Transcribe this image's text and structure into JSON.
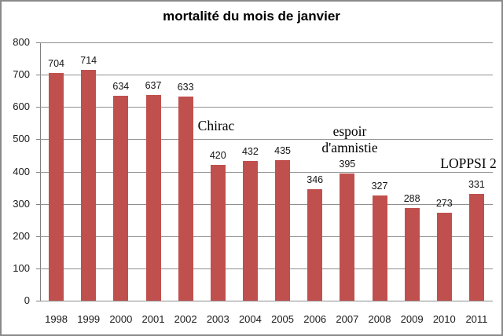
{
  "window": {
    "background_color": "#ffffff",
    "border_color": "#8a8a8a"
  },
  "chart_data": {
    "type": "bar",
    "title": "mortalité du mois de janvier",
    "categories": [
      "1998",
      "1999",
      "2000",
      "2001",
      "2002",
      "2003",
      "2004",
      "2005",
      "2006",
      "2007",
      "2008",
      "2009",
      "2010",
      "2011"
    ],
    "values": [
      704,
      714,
      634,
      637,
      633,
      420,
      432,
      435,
      346,
      395,
      327,
      288,
      273,
      331
    ],
    "xlabel": "",
    "ylabel": "",
    "ylim": [
      0,
      800
    ],
    "yticks": [
      0,
      100,
      200,
      300,
      400,
      500,
      600,
      700,
      800
    ],
    "grid": true,
    "legend": "none",
    "bar_color": "#c0504d",
    "gridline_color": "#8f8f8f",
    "annotations": [
      {
        "lines": [
          "Chirac"
        ],
        "anchor_year": "2003"
      },
      {
        "lines": [
          "espoir",
          "d'amnistie"
        ],
        "anchor_year": "2007"
      },
      {
        "lines": [
          "LOPPSI 2"
        ],
        "anchor_year": "2011"
      }
    ]
  }
}
